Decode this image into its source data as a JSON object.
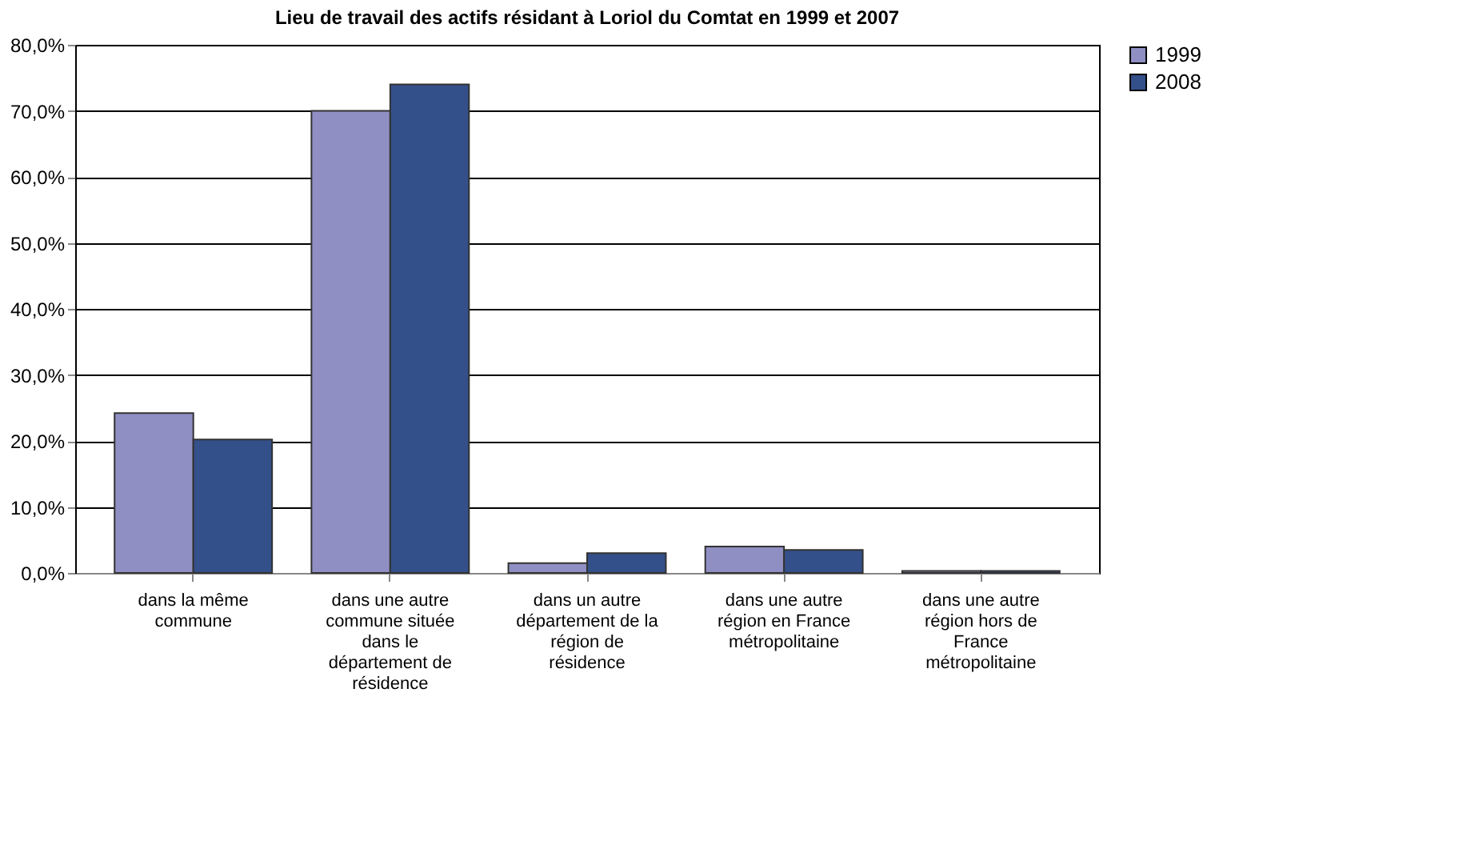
{
  "chart_data": {
    "type": "bar",
    "title": "Lieu de travail des actifs résidant à Loriol du Comtat en 1999 et 2007",
    "categories": [
      "dans la même commune",
      "dans une autre commune située dans le département de résidence",
      "dans un autre département de la région de résidence",
      "dans une autre région en France métropolitaine",
      "dans une autre région hors de France métropolitaine"
    ],
    "series": [
      {
        "name": "1999",
        "color": "#8f8fc4",
        "values": [
          24.2,
          70.0,
          1.5,
          4.0,
          0.3
        ]
      },
      {
        "name": "2008",
        "color": "#34508a",
        "values": [
          20.2,
          74.0,
          3.0,
          3.5,
          0.3
        ]
      }
    ],
    "ylim": [
      0,
      80
    ],
    "yticks": [
      {
        "value": 0,
        "label": "0,0%"
      },
      {
        "value": 10,
        "label": "10,0%"
      },
      {
        "value": 20,
        "label": "20,0%"
      },
      {
        "value": 30,
        "label": "30,0%"
      },
      {
        "value": 40,
        "label": "40,0%"
      },
      {
        "value": 50,
        "label": "50,0%"
      },
      {
        "value": 60,
        "label": "60,0%"
      },
      {
        "value": 70,
        "label": "70,0%"
      },
      {
        "value": 80,
        "label": "80,0%"
      }
    ],
    "grid": "y",
    "legend": "right"
  }
}
